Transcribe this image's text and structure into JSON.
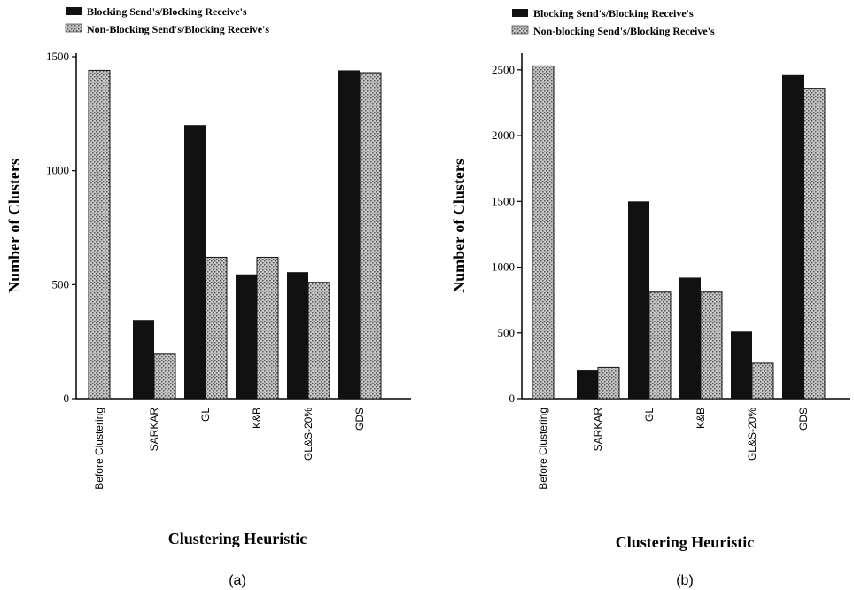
{
  "chart_data": [
    {
      "type": "bar",
      "panel_label": "(a)",
      "categories": [
        "Before Clustering",
        "SARKAR",
        "GL",
        "K&B",
        "GL&S-20%",
        "GDS"
      ],
      "series": [
        {
          "name": "Blocking Send's/Blocking Receive's",
          "values": [
            null,
            345,
            1200,
            545,
            555,
            1440
          ],
          "color": "#111111",
          "pattern": "solid"
        },
        {
          "name": "Non-Blocking Send's/Blocking Receive's",
          "values": [
            1440,
            195,
            620,
            620,
            510,
            1430
          ],
          "color": "#bdbdbd",
          "pattern": "dotted"
        }
      ],
      "xlabel": "Clustering Heuristic",
      "ylabel": "Number of Clusters",
      "ylim": [
        0,
        1500
      ],
      "yticks": [
        0,
        500,
        1000,
        1500
      ],
      "legend_position": "top-left",
      "grid": false
    },
    {
      "type": "bar",
      "panel_label": "(b)",
      "categories": [
        "Before Clustering",
        "SARKAR",
        "GL",
        "K&B",
        "GL&S-20%",
        "GDS"
      ],
      "series": [
        {
          "name": "Blocking Send's/Blocking Receive's",
          "values": [
            null,
            215,
            1500,
            920,
            510,
            2460
          ],
          "color": "#111111",
          "pattern": "solid"
        },
        {
          "name": "Non-blocking Send's/Blocking Receive's",
          "values": [
            2530,
            240,
            810,
            810,
            270,
            2360
          ],
          "color": "#bdbdbd",
          "pattern": "dotted"
        }
      ],
      "xlabel": "Clustering Heuristic",
      "ylabel": "Number of Clusters",
      "ylim": [
        0,
        2600
      ],
      "yticks": [
        0,
        500,
        1000,
        1500,
        2000,
        2500
      ],
      "legend_position": "top-left",
      "grid": false
    }
  ]
}
